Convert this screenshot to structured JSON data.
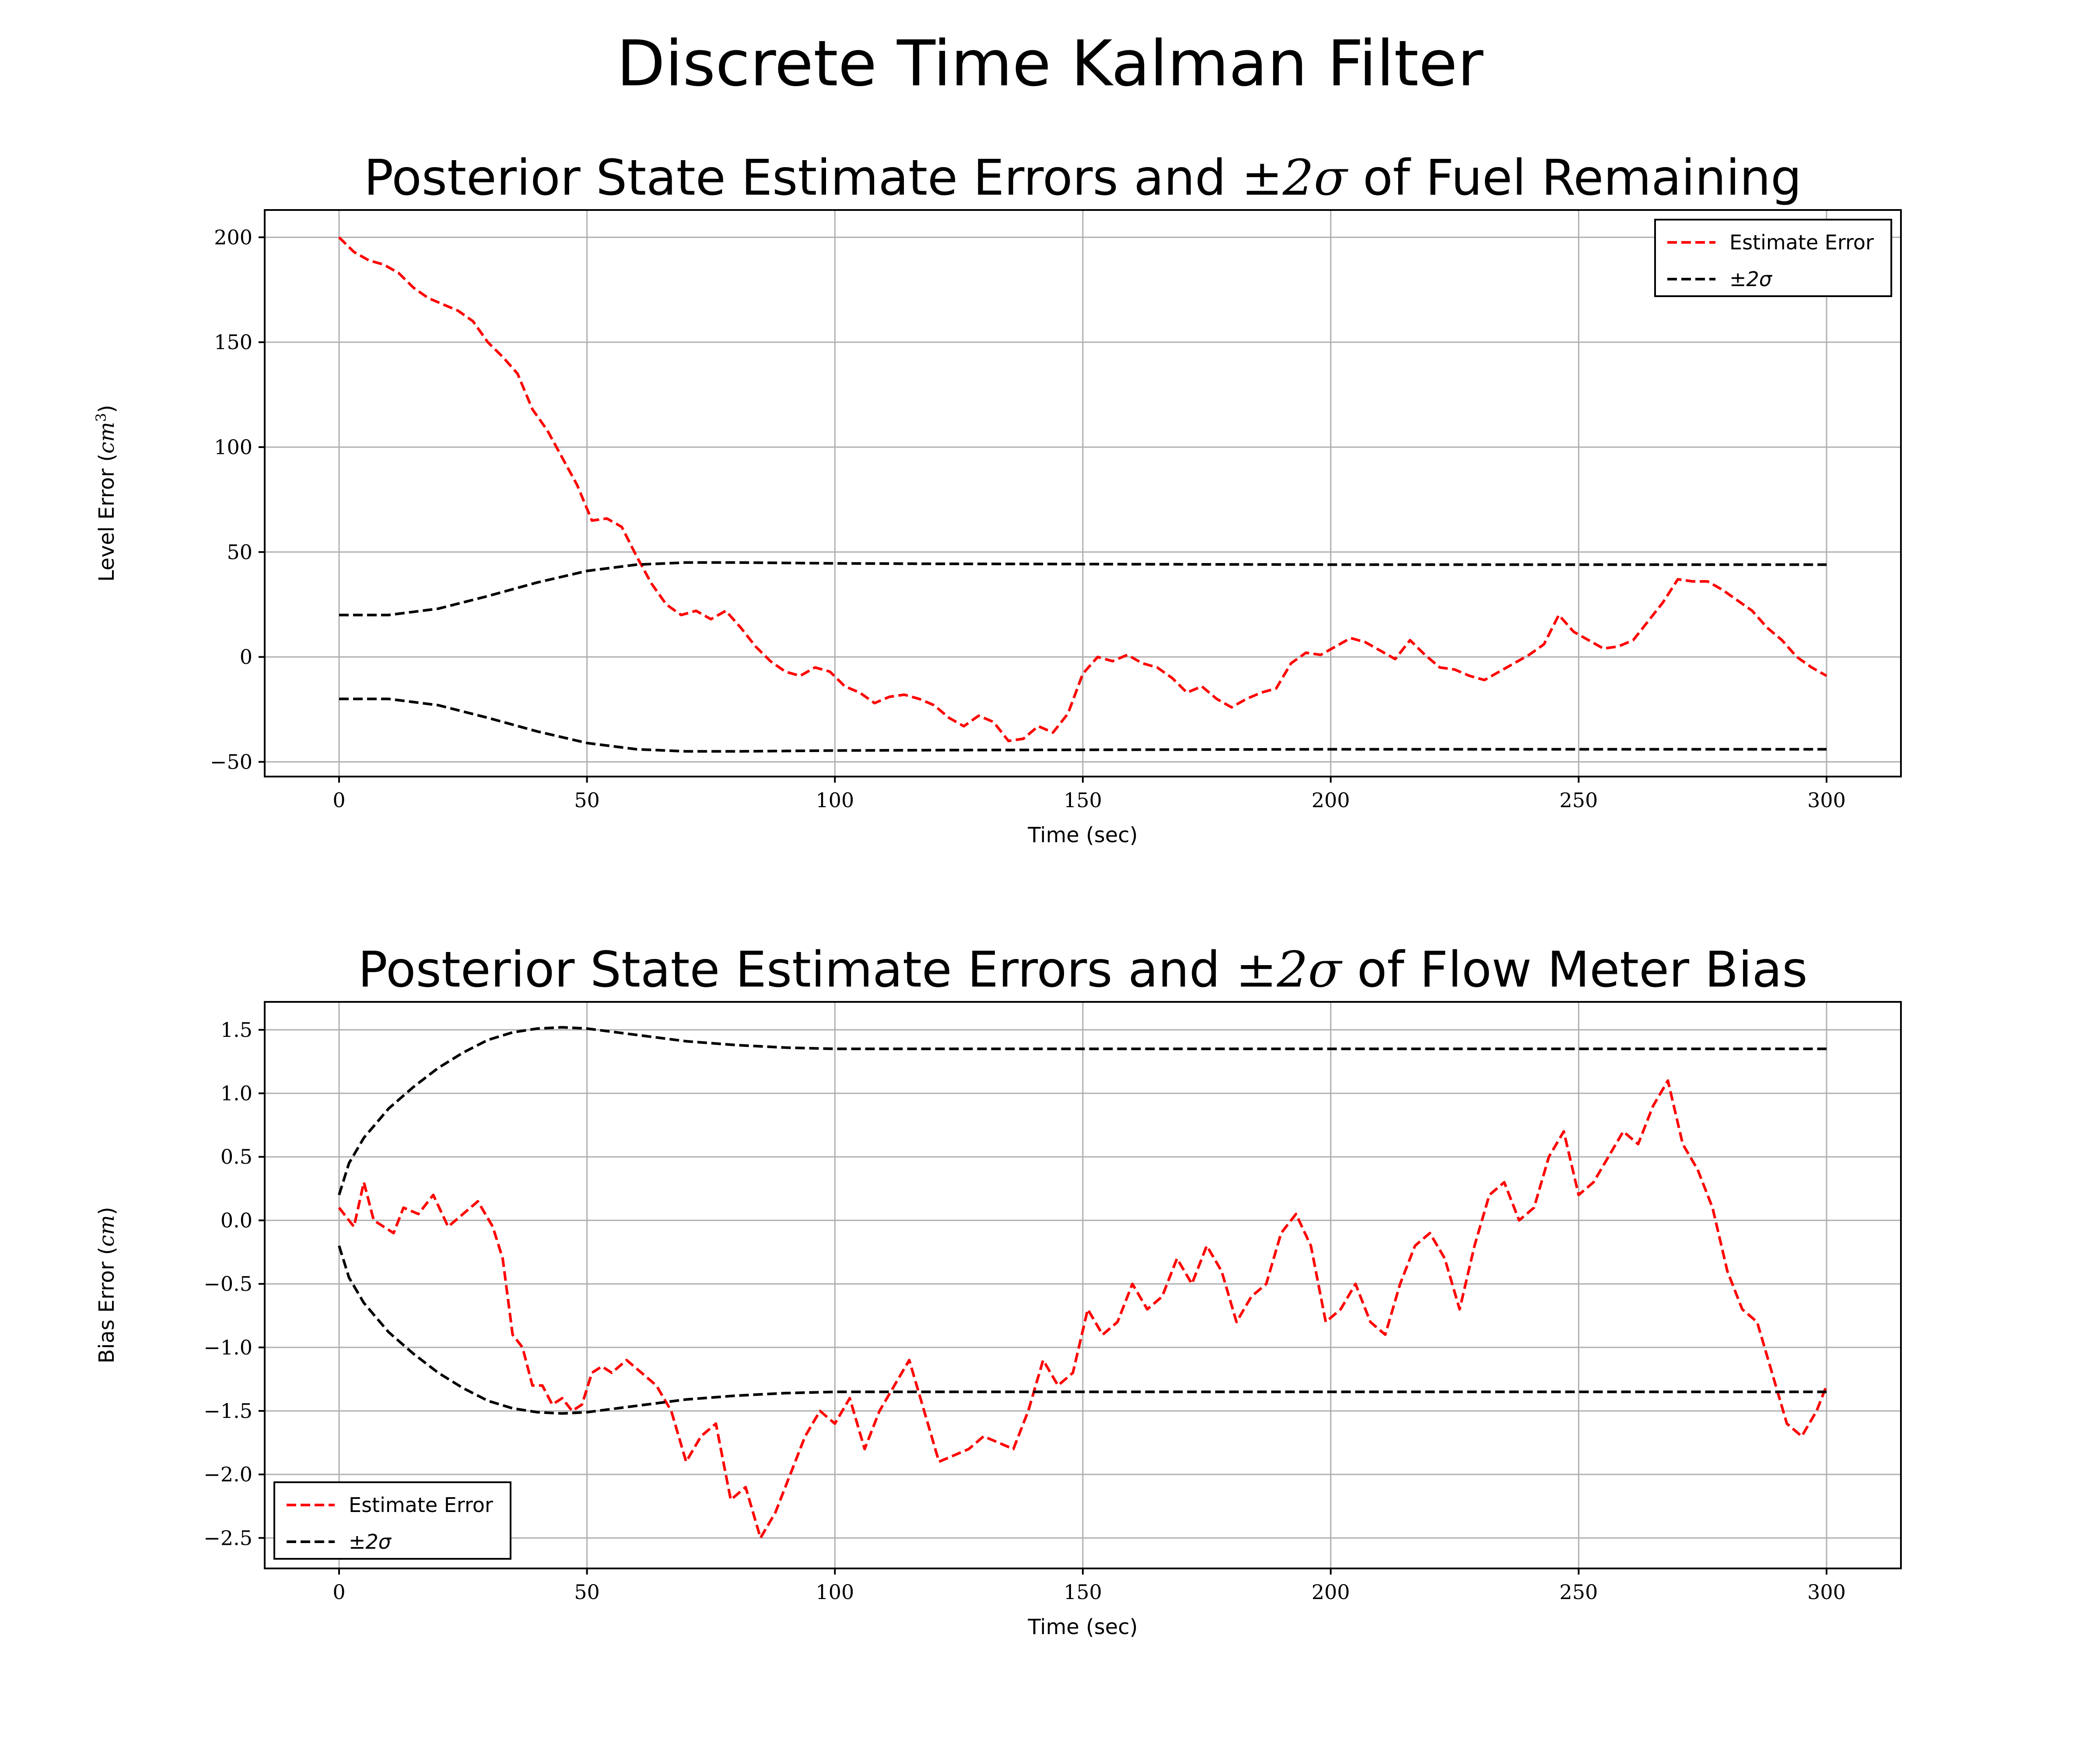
{
  "figure": {
    "title": "Discrete Time Kalman Filter"
  },
  "chart_data": [
    {
      "type": "line",
      "title": "Posterior State Estimate Errors and ±2σ of Fuel Remaining",
      "title_prefix": "Posterior State Estimate Errors and ",
      "title_math": "±2σ",
      "title_suffix": " of Fuel Remaining",
      "xlabel": "Time (sec)",
      "ylabel": "Level Error (cm³)",
      "ylabel_text": "Level Error (",
      "ylabel_math": "cm",
      "ylabel_sup": "3",
      "ylabel_end": ")",
      "xlim": [
        -15,
        315
      ],
      "ylim": [
        -57,
        213
      ],
      "xticks": [
        0,
        50,
        100,
        150,
        200,
        250,
        300
      ],
      "xtick_labels": [
        "0",
        "50",
        "100",
        "150",
        "200",
        "250",
        "300"
      ],
      "yticks": [
        -50,
        0,
        50,
        100,
        150,
        200
      ],
      "ytick_labels": [
        "−50",
        "0",
        "50",
        "100",
        "150",
        "200"
      ],
      "grid": true,
      "legend_position": "top-right",
      "series": [
        {
          "name": "Estimate Error",
          "color": "#ff0000",
          "style": "dashed",
          "x": [
            0,
            3,
            6,
            9,
            12,
            15,
            18,
            21,
            24,
            27,
            30,
            33,
            36,
            39,
            42,
            45,
            48,
            51,
            54,
            57,
            60,
            63,
            66,
            69,
            72,
            75,
            78,
            81,
            84,
            87,
            90,
            93,
            96,
            99,
            102,
            105,
            108,
            111,
            114,
            117,
            120,
            123,
            126,
            129,
            132,
            135,
            138,
            141,
            144,
            147,
            150,
            153,
            156,
            159,
            162,
            165,
            168,
            171,
            174,
            177,
            180,
            183,
            186,
            189,
            192,
            195,
            198,
            201,
            204,
            207,
            210,
            213,
            216,
            219,
            222,
            225,
            228,
            231,
            234,
            237,
            240,
            243,
            246,
            249,
            252,
            255,
            258,
            261,
            264,
            267,
            270,
            273,
            276,
            279,
            282,
            285,
            288,
            291,
            294,
            297,
            300
          ],
          "y": [
            200,
            193,
            189,
            187,
            183,
            176,
            171,
            168,
            165,
            160,
            150,
            143,
            135,
            118,
            108,
            95,
            82,
            65,
            66,
            62,
            48,
            35,
            25,
            20,
            22,
            18,
            22,
            14,
            5,
            -2,
            -7,
            -9,
            -5,
            -7,
            -14,
            -17,
            -22,
            -19,
            -18,
            -20,
            -23,
            -29,
            -33,
            -28,
            -31,
            -40,
            -39,
            -33,
            -36,
            -27,
            -8,
            0,
            -2,
            1,
            -3,
            -5,
            -10,
            -17,
            -14,
            -20,
            -24,
            -20,
            -17,
            -15,
            -3,
            2,
            1,
            5,
            9,
            7,
            3,
            -1,
            8,
            1,
            -5,
            -6,
            -9,
            -11,
            -7,
            -3,
            1,
            6,
            20,
            12,
            8,
            4,
            5,
            8,
            17,
            26,
            37,
            36,
            36,
            32,
            27,
            22,
            14,
            8,
            0,
            -5,
            -9
          ]
        },
        {
          "name": "±2σ",
          "color": "#000000",
          "style": "dashed",
          "x": [
            0,
            10,
            20,
            30,
            40,
            50,
            60,
            70,
            80,
            90,
            100,
            120,
            140,
            160,
            180,
            200,
            220,
            240,
            260,
            280,
            300
          ],
          "y": [
            20,
            20,
            23,
            29,
            35.5,
            41,
            44,
            45,
            45,
            44.8,
            44.6,
            44.4,
            44.3,
            44.2,
            44.1,
            44,
            44,
            44,
            44,
            44,
            44
          ]
        },
        {
          "name": "",
          "color": "#000000",
          "style": "dashed",
          "x": [
            0,
            10,
            20,
            30,
            40,
            50,
            60,
            70,
            80,
            90,
            100,
            120,
            140,
            160,
            180,
            200,
            220,
            240,
            260,
            280,
            300
          ],
          "y": [
            -20,
            -20,
            -23,
            -29,
            -35.5,
            -41,
            -44,
            -45,
            -45,
            -44.8,
            -44.6,
            -44.4,
            -44.3,
            -44.2,
            -44.1,
            -44,
            -44,
            -44,
            -44,
            -44,
            -44
          ]
        }
      ]
    },
    {
      "type": "line",
      "title": "Posterior State Estimate Errors and ±2σ of Flow Meter Bias",
      "title_prefix": "Posterior State Estimate Errors and ",
      "title_math": "±2σ",
      "title_suffix": " of Flow Meter Bias",
      "xlabel": "Time (sec)",
      "ylabel": "Bias Error (cm)",
      "ylabel_text": "Bias Error (",
      "ylabel_math": "cm",
      "ylabel_sup": "",
      "ylabel_end": ")",
      "xlim": [
        -15,
        315
      ],
      "ylim": [
        -2.74,
        1.72
      ],
      "xticks": [
        0,
        50,
        100,
        150,
        200,
        250,
        300
      ],
      "xtick_labels": [
        "0",
        "50",
        "100",
        "150",
        "200",
        "250",
        "300"
      ],
      "yticks": [
        -2.5,
        -2.0,
        -1.5,
        -1.0,
        -0.5,
        0.0,
        0.5,
        1.0,
        1.5
      ],
      "ytick_labels": [
        "−2.5",
        "−2.0",
        "−1.5",
        "−1.0",
        "−0.5",
        "0.0",
        "0.5",
        "1.0",
        "1.5"
      ],
      "grid": true,
      "legend_position": "bottom-left",
      "series": [
        {
          "name": "Estimate Error",
          "color": "#ff0000",
          "style": "dashed",
          "x": [
            0,
            3,
            5,
            7,
            9,
            11,
            13,
            16,
            19,
            22,
            25,
            28,
            31,
            33,
            35,
            37,
            39,
            41,
            43,
            45,
            47,
            49,
            51,
            53,
            55,
            58,
            61,
            64,
            67,
            70,
            73,
            76,
            79,
            82,
            85,
            88,
            91,
            94,
            97,
            100,
            103,
            106,
            109,
            112,
            115,
            118,
            121,
            124,
            127,
            130,
            133,
            136,
            139,
            142,
            145,
            148,
            151,
            154,
            157,
            160,
            163,
            166,
            169,
            172,
            175,
            178,
            181,
            184,
            187,
            190,
            193,
            196,
            199,
            202,
            205,
            208,
            211,
            214,
            217,
            220,
            223,
            226,
            229,
            232,
            235,
            238,
            241,
            244,
            247,
            250,
            253,
            256,
            259,
            262,
            265,
            268,
            271,
            274,
            277,
            280,
            283,
            286,
            289,
            292,
            295,
            298,
            300
          ],
          "y": [
            0.1,
            -0.05,
            0.3,
            0.0,
            -0.05,
            -0.1,
            0.1,
            0.05,
            0.2,
            -0.05,
            0.05,
            0.15,
            -0.05,
            -0.3,
            -0.9,
            -1.0,
            -1.3,
            -1.3,
            -1.45,
            -1.4,
            -1.5,
            -1.45,
            -1.2,
            -1.15,
            -1.2,
            -1.1,
            -1.2,
            -1.3,
            -1.5,
            -1.9,
            -1.7,
            -1.6,
            -2.2,
            -2.1,
            -2.5,
            -2.3,
            -2.0,
            -1.7,
            -1.5,
            -1.6,
            -1.4,
            -1.8,
            -1.5,
            -1.3,
            -1.1,
            -1.5,
            -1.9,
            -1.85,
            -1.8,
            -1.7,
            -1.75,
            -1.8,
            -1.5,
            -1.1,
            -1.3,
            -1.2,
            -0.7,
            -0.9,
            -0.8,
            -0.5,
            -0.7,
            -0.6,
            -0.3,
            -0.5,
            -0.2,
            -0.4,
            -0.8,
            -0.6,
            -0.5,
            -0.1,
            0.05,
            -0.2,
            -0.8,
            -0.7,
            -0.5,
            -0.8,
            -0.9,
            -0.5,
            -0.2,
            -0.1,
            -0.3,
            -0.7,
            -0.2,
            0.2,
            0.3,
            0.0,
            0.1,
            0.5,
            0.7,
            0.2,
            0.3,
            0.5,
            0.7,
            0.6,
            0.9,
            1.1,
            0.6,
            0.4,
            0.1,
            -0.4,
            -0.7,
            -0.8,
            -1.2,
            -1.6,
            -1.7,
            -1.5,
            -1.3
          ]
        },
        {
          "name": "±2σ",
          "color": "#000000",
          "style": "dashed",
          "x": [
            0,
            2,
            5,
            10,
            15,
            20,
            25,
            30,
            35,
            40,
            45,
            50,
            60,
            70,
            80,
            90,
            100,
            120,
            140,
            160,
            180,
            200,
            220,
            240,
            260,
            280,
            300
          ],
          "y": [
            0.2,
            0.45,
            0.65,
            0.88,
            1.05,
            1.2,
            1.32,
            1.42,
            1.48,
            1.51,
            1.52,
            1.51,
            1.46,
            1.41,
            1.38,
            1.36,
            1.35,
            1.35,
            1.35,
            1.35,
            1.35,
            1.35,
            1.35,
            1.35,
            1.35,
            1.35,
            1.35
          ]
        },
        {
          "name": "",
          "color": "#000000",
          "style": "dashed",
          "x": [
            0,
            2,
            5,
            10,
            15,
            20,
            25,
            30,
            35,
            40,
            45,
            50,
            60,
            70,
            80,
            90,
            100,
            120,
            140,
            160,
            180,
            200,
            220,
            240,
            260,
            280,
            300
          ],
          "y": [
            -0.2,
            -0.45,
            -0.65,
            -0.88,
            -1.05,
            -1.2,
            -1.32,
            -1.42,
            -1.48,
            -1.51,
            -1.52,
            -1.51,
            -1.46,
            -1.41,
            -1.38,
            -1.36,
            -1.35,
            -1.35,
            -1.35,
            -1.35,
            -1.35,
            -1.35,
            -1.35,
            -1.35,
            -1.35,
            -1.35,
            -1.35
          ]
        }
      ]
    }
  ]
}
